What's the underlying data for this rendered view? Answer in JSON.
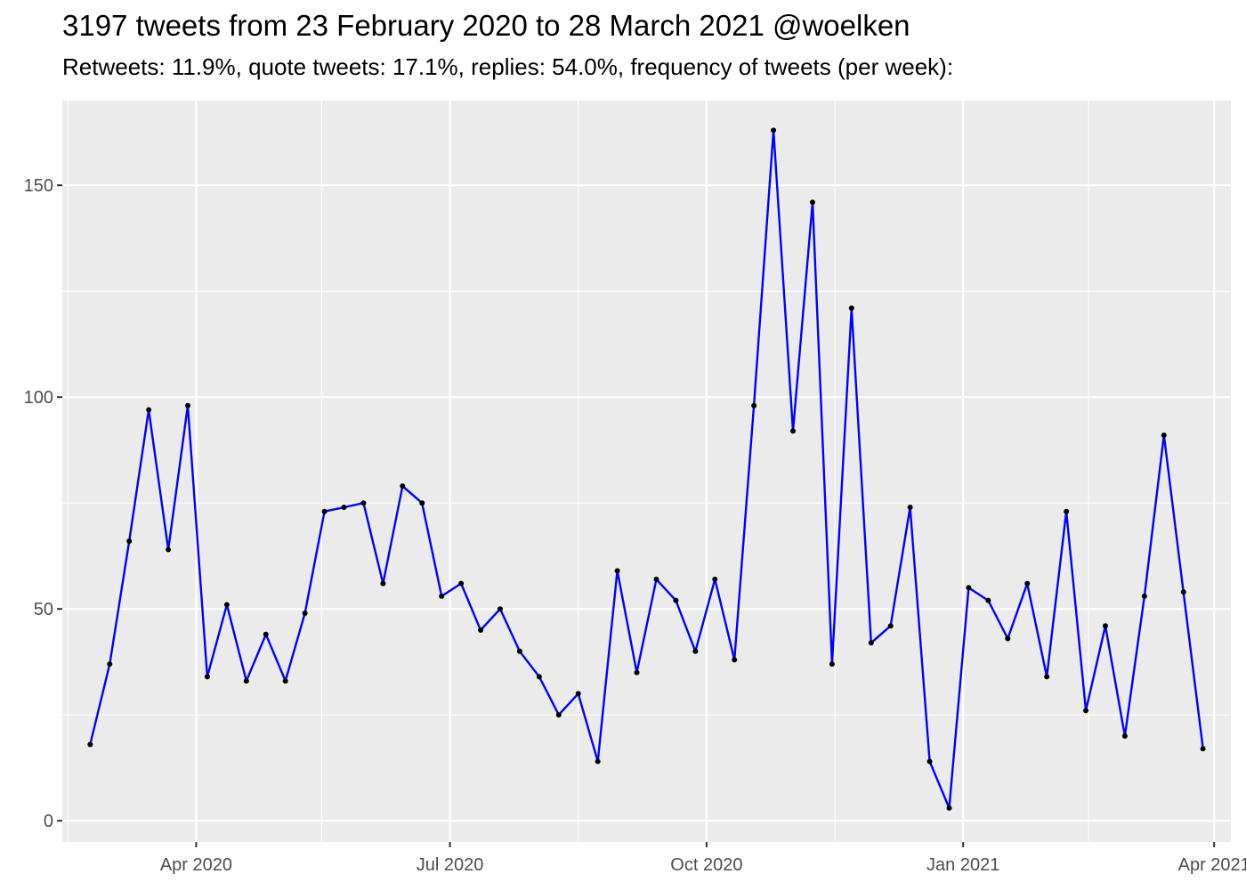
{
  "chart_data": {
    "type": "line",
    "title": "3197 tweets from 23 February 2020 to 28 March 2021 @woelken",
    "subtitle": "Retweets: 11.9%, quote tweets: 17.1%, replies: 54.0%, frequency of tweets (per week):",
    "xlabel": "",
    "ylabel": "",
    "xlim": [
      "2020-02-13",
      "2021-04-07"
    ],
    "ylim": [
      -5,
      170
    ],
    "y_ticks": [
      0,
      50,
      100,
      150
    ],
    "y_minor_ticks": [
      25,
      75,
      125
    ],
    "x_ticks": [
      {
        "date": "2020-04-01",
        "label": "Apr 2020"
      },
      {
        "date": "2020-07-01",
        "label": "Jul 2020"
      },
      {
        "date": "2020-10-01",
        "label": "Oct 2020"
      },
      {
        "date": "2021-01-01",
        "label": "Jan 2021"
      },
      {
        "date": "2021-04-01",
        "label": "Apr 2021"
      }
    ],
    "x_minor_ticks": [
      "2020-02-15",
      "2020-05-16",
      "2020-08-16",
      "2020-11-16",
      "2021-02-15"
    ],
    "grid": true,
    "series": [
      {
        "color": "#0000ff",
        "marker_color": "#000000",
        "x": [
          "2020-02-23",
          "2020-03-01",
          "2020-03-08",
          "2020-03-15",
          "2020-03-22",
          "2020-03-29",
          "2020-04-05",
          "2020-04-12",
          "2020-04-19",
          "2020-04-26",
          "2020-05-03",
          "2020-05-10",
          "2020-05-17",
          "2020-05-24",
          "2020-05-31",
          "2020-06-07",
          "2020-06-14",
          "2020-06-21",
          "2020-06-28",
          "2020-07-05",
          "2020-07-12",
          "2020-07-19",
          "2020-07-26",
          "2020-08-02",
          "2020-08-09",
          "2020-08-16",
          "2020-08-23",
          "2020-08-30",
          "2020-09-06",
          "2020-09-13",
          "2020-09-20",
          "2020-09-27",
          "2020-10-04",
          "2020-10-11",
          "2020-10-18",
          "2020-10-25",
          "2020-11-01",
          "2020-11-08",
          "2020-11-15",
          "2020-11-22",
          "2020-11-29",
          "2020-12-06",
          "2020-12-13",
          "2020-12-20",
          "2020-12-27",
          "2021-01-03",
          "2021-01-10",
          "2021-01-17",
          "2021-01-24",
          "2021-01-31",
          "2021-02-07",
          "2021-02-14",
          "2021-02-21",
          "2021-02-28",
          "2021-03-07",
          "2021-03-14",
          "2021-03-21",
          "2021-03-28"
        ],
        "values": [
          18,
          37,
          66,
          97,
          64,
          98,
          34,
          51,
          33,
          44,
          33,
          49,
          73,
          74,
          75,
          56,
          79,
          75,
          53,
          56,
          45,
          50,
          40,
          34,
          25,
          30,
          14,
          59,
          35,
          57,
          52,
          40,
          57,
          38,
          98,
          163,
          92,
          146,
          37,
          121,
          42,
          46,
          74,
          14,
          3,
          55,
          52,
          43,
          56,
          34,
          73,
          26,
          46,
          20,
          53,
          91,
          54,
          17
        ]
      }
    ]
  }
}
